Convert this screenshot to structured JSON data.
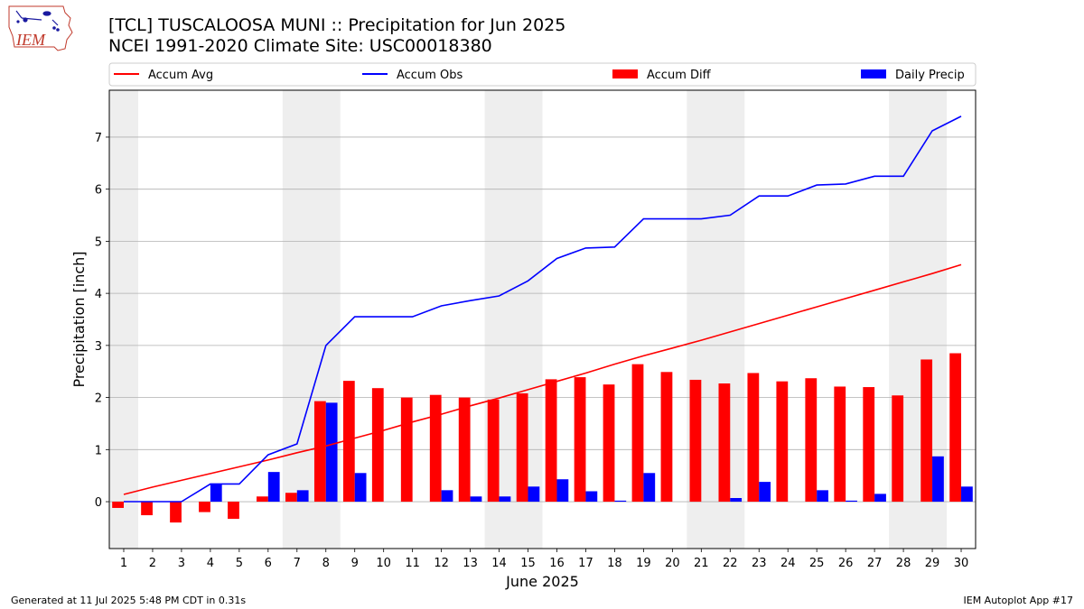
{
  "header": {
    "title_line1": "[TCL] TUSCALOOSA MUNI :: Precipitation for Jun 2025",
    "title_line2": "NCEI 1991-2020 Climate Site: USC00018380",
    "logo_text": "IEM"
  },
  "footer": {
    "generated": "Generated at 11 Jul 2025 5:48 PM CDT in 0.31s",
    "app": "IEM Autoplot App #17"
  },
  "colors": {
    "accum_avg": "#ff0000",
    "accum_obs": "#0000ff",
    "accum_diff": "#ff0000",
    "daily_precip": "#0000ff",
    "weekend_shade": "#eeeeee",
    "grid": "#b0b0b0"
  },
  "chart_data": {
    "type": "bar",
    "xlabel": "June 2025",
    "ylabel": "Precipitation [inch]",
    "ylim": [
      -0.9,
      7.9
    ],
    "yticks": [
      0,
      1,
      2,
      3,
      4,
      5,
      6,
      7
    ],
    "grid": "horizontal",
    "legend_placement": "top",
    "categories": [
      "1",
      "2",
      "3",
      "4",
      "5",
      "6",
      "7",
      "8",
      "9",
      "10",
      "11",
      "12",
      "13",
      "14",
      "15",
      "16",
      "17",
      "18",
      "19",
      "20",
      "21",
      "22",
      "23",
      "24",
      "25",
      "26",
      "27",
      "28",
      "29",
      "30"
    ],
    "weekend_days": [
      [
        1,
        1
      ],
      [
        7,
        8
      ],
      [
        14,
        15
      ],
      [
        21,
        22
      ],
      [
        28,
        29
      ]
    ],
    "legend": [
      "Accum Avg",
      "Accum Obs",
      "Accum Diff",
      "Daily Precip"
    ],
    "series": [
      {
        "name": "Accum Avg",
        "kind": "line",
        "values": [
          0.14,
          0.28,
          0.41,
          0.54,
          0.67,
          0.8,
          0.94,
          1.07,
          1.22,
          1.37,
          1.53,
          1.68,
          1.84,
          1.99,
          2.15,
          2.31,
          2.47,
          2.64,
          2.8,
          2.95,
          3.1,
          3.26,
          3.42,
          3.58,
          3.74,
          3.9,
          4.06,
          4.22,
          4.38,
          4.55
        ]
      },
      {
        "name": "Accum Obs",
        "kind": "line",
        "values": [
          0.0,
          0.0,
          0.0,
          0.34,
          0.34,
          0.9,
          1.11,
          3.0,
          3.55,
          3.55,
          3.55,
          3.76,
          3.86,
          3.95,
          4.24,
          4.67,
          4.87,
          4.89,
          5.43,
          5.43,
          5.43,
          5.5,
          5.87,
          5.87,
          6.08,
          6.1,
          6.25,
          6.25,
          7.12,
          7.4
        ]
      },
      {
        "name": "Accum Diff",
        "kind": "bar",
        "values": [
          -0.12,
          -0.26,
          -0.4,
          -0.2,
          -0.33,
          0.1,
          0.17,
          1.93,
          2.32,
          2.18,
          2.0,
          2.05,
          2.0,
          1.96,
          2.08,
          2.35,
          2.39,
          2.25,
          2.64,
          2.49,
          2.34,
          2.27,
          2.47,
          2.31,
          2.37,
          2.21,
          2.2,
          2.04,
          2.73,
          2.85
        ]
      },
      {
        "name": "Daily Precip",
        "kind": "bar",
        "values": [
          0,
          0,
          0,
          0.34,
          0,
          0.57,
          0.22,
          1.9,
          0.55,
          0,
          0,
          0.22,
          0.1,
          0.1,
          0.29,
          0.43,
          0.2,
          0.02,
          0.55,
          0,
          0,
          0.07,
          0.38,
          0,
          0.22,
          0.02,
          0.15,
          0,
          0.87,
          0.29
        ]
      }
    ]
  }
}
